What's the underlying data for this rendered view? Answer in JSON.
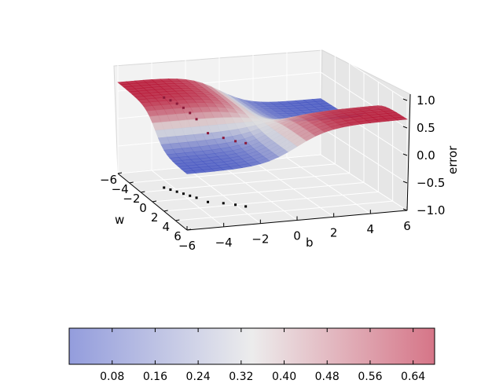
{
  "chart_data": {
    "type": "surface3d",
    "axes": {
      "x": {
        "label": "w",
        "ticks": [
          "−6",
          "−4",
          "−2",
          "0",
          "2",
          "4",
          "6"
        ],
        "range": [
          -6,
          6
        ]
      },
      "y": {
        "label": "b",
        "ticks": [
          "−6",
          "−4",
          "−2",
          "0",
          "2",
          "4",
          "6"
        ],
        "range": [
          -6,
          6
        ]
      },
      "z": {
        "label": "error",
        "ticks": [
          "−1.0",
          "−0.5",
          "0.0",
          "0.5",
          "1.0"
        ],
        "range": [
          -1,
          1
        ]
      }
    },
    "surface": {
      "function": "tanh-shaped error surface over (w, b)",
      "z_range": [
        0.0,
        0.68
      ],
      "colormap": "coolwarm",
      "grid": true
    },
    "trajectory": {
      "description": "optimizer path points on the surface with black projection on the floor",
      "points": [
        {
          "w": -2.5,
          "b": -4.5
        },
        {
          "w": -2.0,
          "b": -4.3
        },
        {
          "w": -1.5,
          "b": -4.1
        },
        {
          "w": -1.0,
          "b": -3.9
        },
        {
          "w": -0.5,
          "b": -3.7
        },
        {
          "w": 0.0,
          "b": -3.5
        },
        {
          "w": 1.0,
          "b": -3.2
        },
        {
          "w": 1.5,
          "b": -2.5
        },
        {
          "w": 2.0,
          "b": -2.0
        },
        {
          "w": 2.5,
          "b": -1.6
        }
      ]
    },
    "colorbar": {
      "orientation": "horizontal",
      "ticks": [
        "0.08",
        "0.16",
        "0.24",
        "0.32",
        "0.40",
        "0.48",
        "0.56",
        "0.64"
      ],
      "tick_values": [
        0.08,
        0.16,
        0.24,
        0.32,
        0.4,
        0.48,
        0.56,
        0.64
      ],
      "range": [
        0.0,
        0.68
      ],
      "colors": [
        "#3b4cc0",
        "#dddddd",
        "#b40426"
      ]
    }
  }
}
